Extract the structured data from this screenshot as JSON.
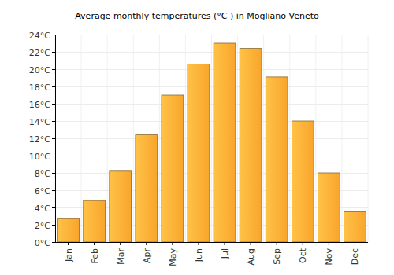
{
  "chart_data": {
    "type": "bar",
    "title": "Average monthly temperatures (°C ) in Mogliano Veneto",
    "categories": [
      "Jan",
      "Feb",
      "Mar",
      "Apr",
      "May",
      "Jun",
      "Jul",
      "Aug",
      "Sep",
      "Oct",
      "Nov",
      "Dec"
    ],
    "values": [
      2.7,
      4.8,
      8.2,
      12.4,
      17.0,
      20.6,
      23.0,
      22.4,
      19.1,
      14.0,
      8.0,
      3.5
    ],
    "color": "#f9a52c",
    "ylim": [
      0,
      24
    ],
    "yticks": [
      {
        "value": 0,
        "label": "0°C"
      },
      {
        "value": 2,
        "label": "2°C"
      },
      {
        "value": 4,
        "label": "4°C"
      },
      {
        "value": 6,
        "label": "6°C"
      },
      {
        "value": 8,
        "label": "8°C"
      },
      {
        "value": 10,
        "label": "10°C"
      },
      {
        "value": 12,
        "label": "12°C"
      },
      {
        "value": 14,
        "label": "14°C"
      },
      {
        "value": 16,
        "label": "16°C"
      },
      {
        "value": 18,
        "label": "18°C"
      },
      {
        "value": 20,
        "label": "20°C"
      },
      {
        "value": 22,
        "label": "22°C"
      },
      {
        "value": 24,
        "label": "24°C"
      }
    ],
    "grid": true
  }
}
